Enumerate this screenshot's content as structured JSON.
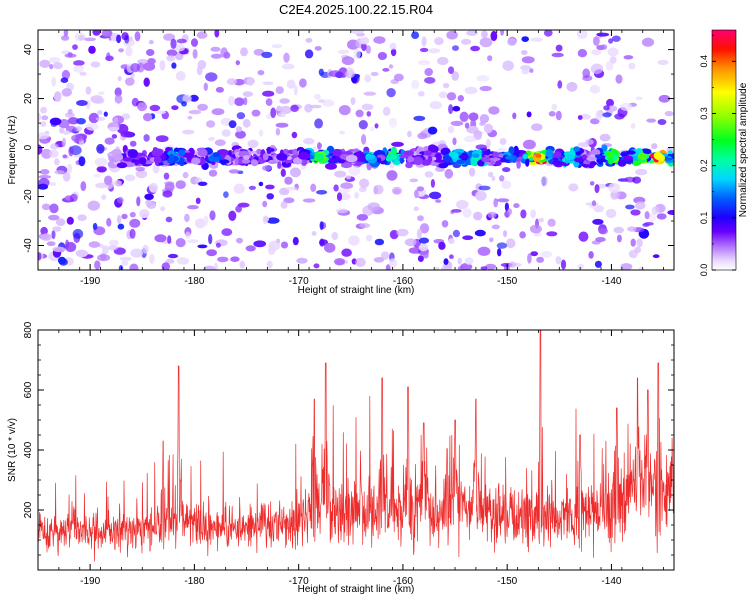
{
  "figure": {
    "title": "C2E4.2025.100.22.15.R04"
  },
  "chart_data": [
    {
      "type": "heatmap",
      "xlabel": "Height of straight line (km)",
      "ylabel": "Frequency (Hz)",
      "xlim": [
        -195,
        -134
      ],
      "ylim": [
        -50,
        48
      ],
      "xticks": [
        -190,
        -180,
        -170,
        -160,
        -150,
        -140
      ],
      "yticks": [
        -40,
        -20,
        0,
        20,
        40
      ],
      "colorbar": {
        "label": "Normalized spectral amplitude",
        "range": [
          0,
          0.46
        ],
        "ticks": [
          0.0,
          0.1,
          0.2,
          0.3,
          0.4
        ],
        "colors": [
          "#ffffff",
          "#c8a0ff",
          "#8a00ff",
          "#4b00ff",
          "#0000ff",
          "#00c0ff",
          "#00ff80",
          "#00ff00",
          "#c0ff00",
          "#ffff00",
          "#ff8000",
          "#ff0000",
          "#ff0080"
        ]
      },
      "band": {
        "center_hz": -4,
        "hotspots": [
          {
            "x": -182,
            "value": 0.18
          },
          {
            "x": -178,
            "value": 0.15
          },
          {
            "x": -168,
            "value": 0.3
          },
          {
            "x": -163,
            "value": 0.2
          },
          {
            "x": -161,
            "value": 0.25
          },
          {
            "x": -155,
            "value": 0.2
          },
          {
            "x": -153,
            "value": 0.22
          },
          {
            "x": -150,
            "value": 0.15
          },
          {
            "x": -147,
            "value": 0.44
          },
          {
            "x": -144,
            "value": 0.22
          },
          {
            "x": -140,
            "value": 0.28
          },
          {
            "x": -137,
            "value": 0.3
          },
          {
            "x": -135.5,
            "value": 0.46
          }
        ]
      }
    },
    {
      "type": "line",
      "xlabel": "Height of straight line (km)",
      "ylabel": "SNR (10 * v/v)",
      "xlim": [
        -195,
        -134
      ],
      "ylim": [
        0,
        800
      ],
      "xticks": [
        -190,
        -180,
        -170,
        -160,
        -150,
        -140
      ],
      "yticks": [
        200,
        400,
        600,
        800
      ],
      "series": [
        {
          "color": "#ee2c2c",
          "envelope": {
            "x": [
              -195,
              -190,
              -185,
              -182,
              -180,
              -175,
              -171,
              -169,
              -167,
              -165,
              -160,
              -155,
              -150,
              -148,
              -145,
              -142,
              -140,
              -137,
              -134
            ],
            "baseline": [
              130,
              130,
              135,
              160,
              150,
              140,
              150,
              185,
              210,
              200,
              195,
              200,
              175,
              180,
              170,
              190,
              215,
              255,
              260
            ],
            "spread": [
              70,
              70,
              75,
              100,
              85,
              75,
              85,
              115,
              135,
              125,
              120,
              125,
              105,
              110,
              100,
              120,
              135,
              165,
              170
            ]
          },
          "peaks": [
            {
              "x": -181.5,
              "y": 680
            },
            {
              "x": -183,
              "y": 430
            },
            {
              "x": -167.4,
              "y": 690
            },
            {
              "x": -168.5,
              "y": 570
            },
            {
              "x": -162,
              "y": 640
            },
            {
              "x": -159.5,
              "y": 610
            },
            {
              "x": -158,
              "y": 490
            },
            {
              "x": -155,
              "y": 500
            },
            {
              "x": -153,
              "y": 570
            },
            {
              "x": -146.8,
              "y": 800
            },
            {
              "x": -143,
              "y": 450
            },
            {
              "x": -139.5,
              "y": 540
            },
            {
              "x": -137.5,
              "y": 640
            },
            {
              "x": -136.5,
              "y": 600
            },
            {
              "x": -135.5,
              "y": 690
            }
          ]
        }
      ]
    }
  ]
}
